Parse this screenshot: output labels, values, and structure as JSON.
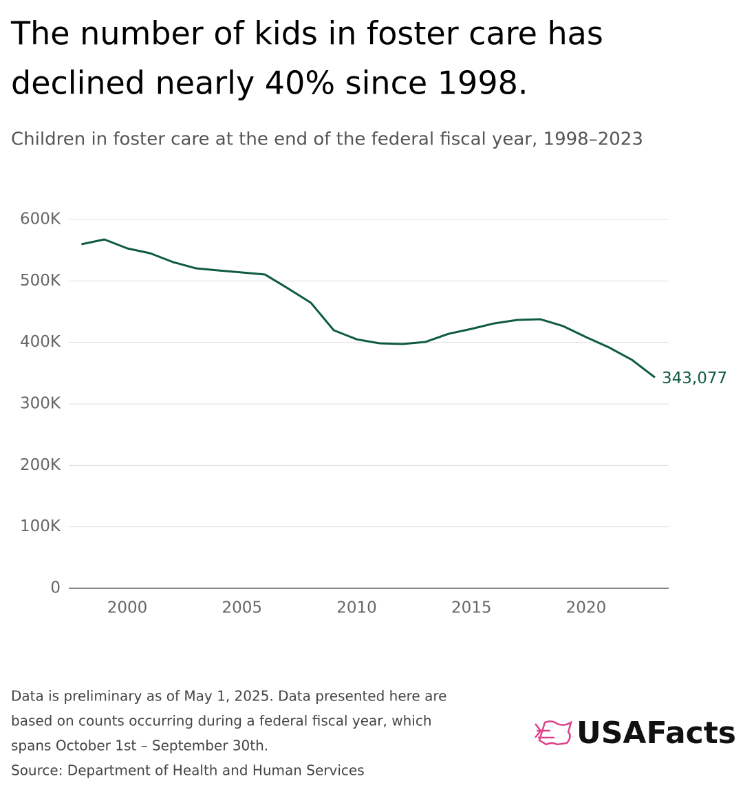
{
  "chart_data": {
    "type": "line",
    "title": [
      "The number of kids in foster care has",
      "declined nearly 40% since 1998."
    ],
    "subtitle": "Children in foster care at the end of the federal fiscal year, 1998–2023",
    "x": [
      1998,
      1999,
      2000,
      2001,
      2002,
      2003,
      2004,
      2005,
      2006,
      2007,
      2008,
      2009,
      2010,
      2011,
      2012,
      2013,
      2014,
      2015,
      2016,
      2017,
      2018,
      2019,
      2020,
      2021,
      2022,
      2023
    ],
    "values": [
      559700,
      567500,
      553000,
      545000,
      530600,
      520500,
      517000,
      513800,
      510500,
      488000,
      464600,
      419800,
      405000,
      398500,
      397400,
      400800,
      414000,
      422000,
      431000,
      436600,
      437700,
      426500,
      408600,
      391800,
      371600,
      343077
    ],
    "value_labels": [
      null,
      null,
      null,
      null,
      null,
      null,
      null,
      null,
      null,
      null,
      null,
      null,
      null,
      null,
      null,
      null,
      null,
      null,
      null,
      null,
      null,
      null,
      null,
      null,
      null,
      "343,077"
    ],
    "color": "#0e5a44",
    "xlim": [
      1997.45,
      2023.6
    ],
    "xticks": [
      2000,
      2005,
      2010,
      2015,
      2020
    ],
    "ylim": [
      0,
      600000
    ],
    "yticks": [
      0,
      {
        "value": 100000,
        "label": "100K"
      },
      {
        "value": 200000,
        "label": "200K"
      },
      {
        "value": 300000,
        "label": "300K"
      },
      {
        "value": 400000,
        "label": "400K"
      },
      {
        "value": 500000,
        "label": "500K"
      },
      {
        "value": 600000,
        "label": "600K"
      }
    ],
    "grid": true,
    "notes": [
      "Data is preliminary as of May 1, 2025. Data presented here are",
      "based on counts occurring during a federal fiscal year, which",
      "spans October 1st – September 30th.",
      "Source: Department of Health and Human Services"
    ],
    "logo": "USAFacts"
  }
}
